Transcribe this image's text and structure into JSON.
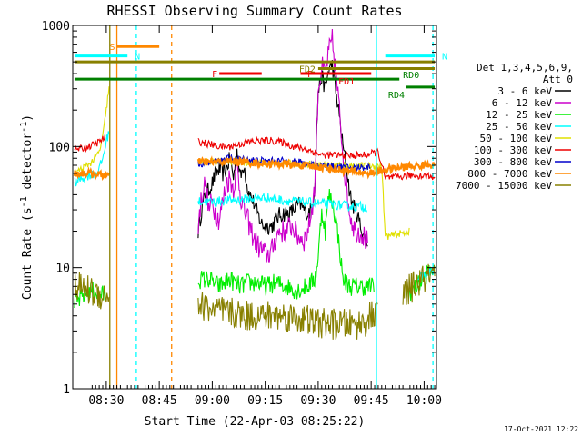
{
  "chart_data": {
    "type": "line",
    "title": "RHESSI Observing Summary Count Rates",
    "xlabel": "Start Time (22-Apr-03 08:25:22)",
    "ylabel": "Count Rate (s",
    "ylabel_sup": "-1",
    "ylabel_unit": " detector",
    "ylabel_sup2": "-1",
    "ylabel_close": ")",
    "y_scale": "log",
    "ylim": [
      1,
      1000
    ],
    "xlim_minutes": [
      -4.5,
      98.5
    ],
    "x_ticks": [
      {
        "label": "08:30",
        "minute": 5
      },
      {
        "label": "08:45",
        "minute": 20
      },
      {
        "label": "09:00",
        "minute": 35
      },
      {
        "label": "09:15",
        "minute": 50
      },
      {
        "label": "09:30",
        "minute": 65
      },
      {
        "label": "09:45",
        "minute": 80
      },
      {
        "label": "10:00",
        "minute": 95
      }
    ],
    "y_ticks": [
      {
        "label": "1",
        "value": 1
      },
      {
        "label": "10",
        "value": 10
      },
      {
        "label": "100",
        "value": 100
      },
      {
        "label": "1000",
        "value": 1000
      }
    ],
    "legend": {
      "placement": "right",
      "header_line1": "Det 1,3,4,5,6,9,",
      "header_line2": "Att 0"
    },
    "series": [
      {
        "name": "3 - 6 keV",
        "color": "#000000",
        "points": [
          [
            30,
            0
          ],
          [
            31,
            20
          ],
          [
            32,
            30
          ],
          [
            33,
            40
          ],
          [
            34,
            44
          ],
          [
            35,
            50
          ],
          [
            36,
            60
          ],
          [
            37,
            65
          ],
          [
            38,
            60
          ],
          [
            39,
            65
          ],
          [
            40,
            80
          ],
          [
            41,
            55
          ],
          [
            42,
            95
          ],
          [
            43,
            55
          ],
          [
            44,
            72
          ],
          [
            45,
            45
          ],
          [
            46,
            38
          ],
          [
            47,
            33
          ],
          [
            48,
            27
          ],
          [
            49,
            23
          ],
          [
            50,
            22
          ],
          [
            51,
            22
          ],
          [
            52,
            22
          ],
          [
            53,
            25
          ],
          [
            54,
            27
          ],
          [
            55,
            28
          ],
          [
            56,
            28
          ],
          [
            57,
            28
          ],
          [
            58,
            30
          ],
          [
            59,
            33
          ],
          [
            60,
            33
          ],
          [
            61,
            30
          ],
          [
            62,
            28
          ],
          [
            63,
            30
          ],
          [
            64,
            45
          ],
          [
            65,
            280
          ],
          [
            66,
            380
          ],
          [
            67,
            300
          ],
          [
            68,
            430
          ],
          [
            69,
            480
          ],
          [
            70,
            280
          ],
          [
            71,
            180
          ],
          [
            72,
            100
          ],
          [
            73,
            70
          ],
          [
            74,
            40
          ],
          [
            75,
            32
          ],
          [
            76,
            28
          ],
          [
            77,
            22
          ],
          [
            78,
            18
          ],
          [
            79,
            15
          ]
        ],
        "noise": 0.07
      },
      {
        "name": "6 - 12 keV",
        "color": "#cc00cc",
        "points": [
          [
            30,
            0
          ],
          [
            31,
            22
          ],
          [
            32,
            40
          ],
          [
            33,
            50
          ],
          [
            34,
            30
          ],
          [
            35,
            35
          ],
          [
            36,
            28
          ],
          [
            37,
            25
          ],
          [
            38,
            35
          ],
          [
            39,
            50
          ],
          [
            40,
            55
          ],
          [
            41,
            45
          ],
          [
            42,
            70
          ],
          [
            43,
            40
          ],
          [
            44,
            30
          ],
          [
            45,
            25
          ],
          [
            46,
            20
          ],
          [
            47,
            17
          ],
          [
            48,
            15
          ],
          [
            49,
            14
          ],
          [
            50,
            13
          ],
          [
            51,
            13
          ],
          [
            52,
            14
          ],
          [
            53,
            18
          ],
          [
            54,
            20
          ],
          [
            55,
            20
          ],
          [
            56,
            20
          ],
          [
            57,
            22
          ],
          [
            58,
            22
          ],
          [
            59,
            18
          ],
          [
            60,
            18
          ],
          [
            61,
            17
          ],
          [
            62,
            20
          ],
          [
            63,
            28
          ],
          [
            64,
            45
          ],
          [
            65,
            300
          ],
          [
            66,
            450
          ],
          [
            67,
            400
          ],
          [
            68,
            600
          ],
          [
            69,
            750
          ],
          [
            70,
            400
          ],
          [
            71,
            200
          ],
          [
            72,
            90
          ],
          [
            73,
            45
          ],
          [
            74,
            28
          ],
          [
            75,
            22
          ],
          [
            76,
            20
          ],
          [
            77,
            20
          ],
          [
            78,
            18
          ],
          [
            79,
            16
          ]
        ],
        "noise": 0.1
      },
      {
        "name": "12 - 25 keV",
        "color": "#00ee00",
        "points": [
          [
            -4,
            5
          ],
          [
            -1,
            6
          ],
          [
            1,
            6.5
          ],
          [
            3,
            6
          ],
          [
            5,
            6
          ],
          [
            7,
            0
          ],
          [
            30,
            0
          ],
          [
            31,
            8
          ],
          [
            34,
            8
          ],
          [
            37,
            7
          ],
          [
            40,
            8
          ],
          [
            43,
            7
          ],
          [
            45,
            7.5
          ],
          [
            48,
            7.5
          ],
          [
            50,
            7
          ],
          [
            53,
            7.5
          ],
          [
            56,
            7
          ],
          [
            59,
            6.5
          ],
          [
            62,
            7
          ],
          [
            64,
            8
          ],
          [
            65,
            12
          ],
          [
            66,
            30
          ],
          [
            67,
            20
          ],
          [
            68,
            40
          ],
          [
            69,
            35
          ],
          [
            70,
            25
          ],
          [
            71,
            15
          ],
          [
            72,
            8
          ],
          [
            74,
            7
          ],
          [
            77,
            7
          ],
          [
            79,
            7
          ],
          [
            81,
            7
          ],
          [
            83,
            0
          ],
          [
            88,
            0
          ],
          [
            90,
            6
          ],
          [
            93,
            7
          ],
          [
            96,
            9
          ],
          [
            98,
            10
          ]
        ],
        "noise": 0.08
      },
      {
        "name": "25 - 50 keV",
        "color": "#00ffff",
        "points": [
          [
            -4,
            50
          ],
          [
            -2,
            55
          ],
          [
            0,
            58
          ],
          [
            2,
            60
          ],
          [
            3,
            65
          ],
          [
            4,
            80
          ],
          [
            5,
            110
          ],
          [
            6,
            140
          ],
          [
            7,
            0
          ],
          [
            30,
            0
          ],
          [
            31,
            35
          ],
          [
            35,
            35
          ],
          [
            40,
            36
          ],
          [
            45,
            37
          ],
          [
            50,
            38
          ],
          [
            55,
            36
          ],
          [
            60,
            35
          ],
          [
            65,
            34
          ],
          [
            70,
            33
          ],
          [
            75,
            32
          ],
          [
            78,
            32
          ],
          [
            79,
            31
          ],
          [
            80,
            0
          ],
          [
            92,
            0
          ],
          [
            93,
            8
          ],
          [
            96,
            9
          ],
          [
            98,
            10
          ]
        ],
        "noise": 0.04
      },
      {
        "name": "50 - 100 keV",
        "color": "#e0e000",
        "points": [
          [
            -4,
            60
          ],
          [
            -1,
            68
          ],
          [
            1,
            75
          ],
          [
            3,
            90
          ],
          [
            4,
            120
          ],
          [
            5,
            200
          ],
          [
            6,
            350
          ],
          [
            7,
            0
          ],
          [
            30,
            0
          ],
          [
            31,
            75
          ],
          [
            40,
            75
          ],
          [
            50,
            73
          ],
          [
            60,
            72
          ],
          [
            70,
            70
          ],
          [
            78,
            69
          ],
          [
            80,
            69
          ],
          [
            83,
            69
          ],
          [
            84,
            18
          ],
          [
            88,
            19
          ],
          [
            91,
            20
          ],
          [
            92,
            0
          ]
        ],
        "noise": 0.03
      },
      {
        "name": "100 - 300 keV",
        "color": "#ee0000",
        "points": [
          [
            -4,
            95
          ],
          [
            -2,
            96
          ],
          [
            0,
            100
          ],
          [
            2,
            105
          ],
          [
            4,
            115
          ],
          [
            5,
            120
          ],
          [
            7,
            0
          ],
          [
            30,
            0
          ],
          [
            31,
            110
          ],
          [
            34,
            105
          ],
          [
            37,
            100
          ],
          [
            40,
            100
          ],
          [
            43,
            105
          ],
          [
            46,
            110
          ],
          [
            49,
            112
          ],
          [
            52,
            112
          ],
          [
            55,
            108
          ],
          [
            58,
            100
          ],
          [
            61,
            96
          ],
          [
            64,
            90
          ],
          [
            66,
            85
          ],
          [
            70,
            85
          ],
          [
            74,
            84
          ],
          [
            78,
            85
          ],
          [
            82,
            90
          ],
          [
            84,
            55
          ],
          [
            88,
            56
          ],
          [
            92,
            58
          ],
          [
            96,
            57
          ],
          [
            98,
            56
          ]
        ],
        "noise": 0.03
      },
      {
        "name": "300 - 800 keV",
        "color": "#0000cc",
        "points": [
          [
            30,
            0
          ],
          [
            31,
            72
          ],
          [
            36,
            75
          ],
          [
            40,
            80
          ],
          [
            45,
            78
          ],
          [
            50,
            76
          ],
          [
            55,
            76
          ],
          [
            60,
            74
          ],
          [
            65,
            70
          ],
          [
            70,
            68
          ],
          [
            75,
            67
          ],
          [
            80,
            68
          ],
          [
            83,
            0
          ]
        ],
        "noise": 0.03
      },
      {
        "name": "800 - 7000 keV",
        "color": "#ff8800",
        "points": [
          [
            -4,
            60
          ],
          [
            0,
            60
          ],
          [
            4,
            58
          ],
          [
            6,
            58
          ],
          [
            7,
            0
          ],
          [
            30,
            0
          ],
          [
            31,
            75
          ],
          [
            35,
            74
          ],
          [
            40,
            76
          ],
          [
            45,
            74
          ],
          [
            50,
            72
          ],
          [
            55,
            72
          ],
          [
            60,
            70
          ],
          [
            65,
            68
          ],
          [
            70,
            65
          ],
          [
            75,
            62
          ],
          [
            80,
            60
          ],
          [
            85,
            65
          ],
          [
            90,
            68
          ],
          [
            95,
            70
          ],
          [
            98,
            72
          ]
        ],
        "noise": 0.03
      },
      {
        "name": "7000 - 15000 keV",
        "color": "#888000",
        "points": [
          [
            -4,
            7
          ],
          [
            0,
            6.5
          ],
          [
            3,
            6
          ],
          [
            5,
            6
          ],
          [
            6,
            6
          ],
          [
            7,
            0
          ],
          [
            30,
            0
          ],
          [
            31,
            5
          ],
          [
            35,
            4.5
          ],
          [
            40,
            4.2
          ],
          [
            45,
            4
          ],
          [
            50,
            4
          ],
          [
            55,
            4
          ],
          [
            60,
            3.8
          ],
          [
            65,
            3.5
          ],
          [
            70,
            3.4
          ],
          [
            75,
            3.4
          ],
          [
            78,
            3.5
          ],
          [
            80,
            4
          ],
          [
            82,
            4
          ],
          [
            84,
            0
          ],
          [
            88,
            0
          ],
          [
            89,
            6
          ],
          [
            92,
            7
          ],
          [
            95,
            8
          ],
          [
            98,
            8.5
          ]
        ],
        "noise": 0.13
      }
    ],
    "flag_bars": [
      {
        "label": "S",
        "color": "#ff8800",
        "x_start": 8,
        "x_end": 20,
        "y": 670
      },
      {
        "label": "N",
        "color": "#00ffff",
        "x_start": -4,
        "x_end": 11,
        "y": 560
      },
      {
        "label": "N",
        "color": "#00ffff",
        "x_start": 84,
        "x_end": 98,
        "y": 560
      },
      {
        "label": "F",
        "color": "#ee0000",
        "x_start": 37,
        "x_end": 49,
        "y": 400
      },
      {
        "label": "F",
        "color": "#ee0000",
        "x_start": 64,
        "x_end": 80,
        "y": 400
      },
      {
        "label": "FD1",
        "color": "#ee0000",
        "x_start": 60,
        "x_end": 80,
        "y": 400
      },
      {
        "label": "FD2",
        "color": "#888000",
        "x_start": 65,
        "x_end": 98,
        "y": 440
      },
      {
        "label": "RD0",
        "color": "#008000",
        "x_start": -4,
        "x_end": 88,
        "y": 360
      },
      {
        "label": "RD4",
        "color": "#008000",
        "x_start": 90,
        "x_end": 98,
        "y": 310
      },
      {
        "label": "",
        "color": "#888000",
        "x_start": -4,
        "x_end": 98,
        "y": 500
      }
    ],
    "vertical_markers": [
      {
        "x": 6,
        "color": "#888000",
        "style": "solid"
      },
      {
        "x": 8,
        "color": "#ff8800",
        "style": "solid"
      },
      {
        "x": 13.5,
        "color": "#00ffff",
        "style": "dashed"
      },
      {
        "x": 23.5,
        "color": "#ff8800",
        "style": "dashed"
      },
      {
        "x": 81.5,
        "color": "#00ffff",
        "style": "solid"
      },
      {
        "x": 97.5,
        "color": "#00ffff",
        "style": "dashed"
      }
    ]
  },
  "footer": {
    "timestamp": "17-Oct-2021 12:22"
  }
}
